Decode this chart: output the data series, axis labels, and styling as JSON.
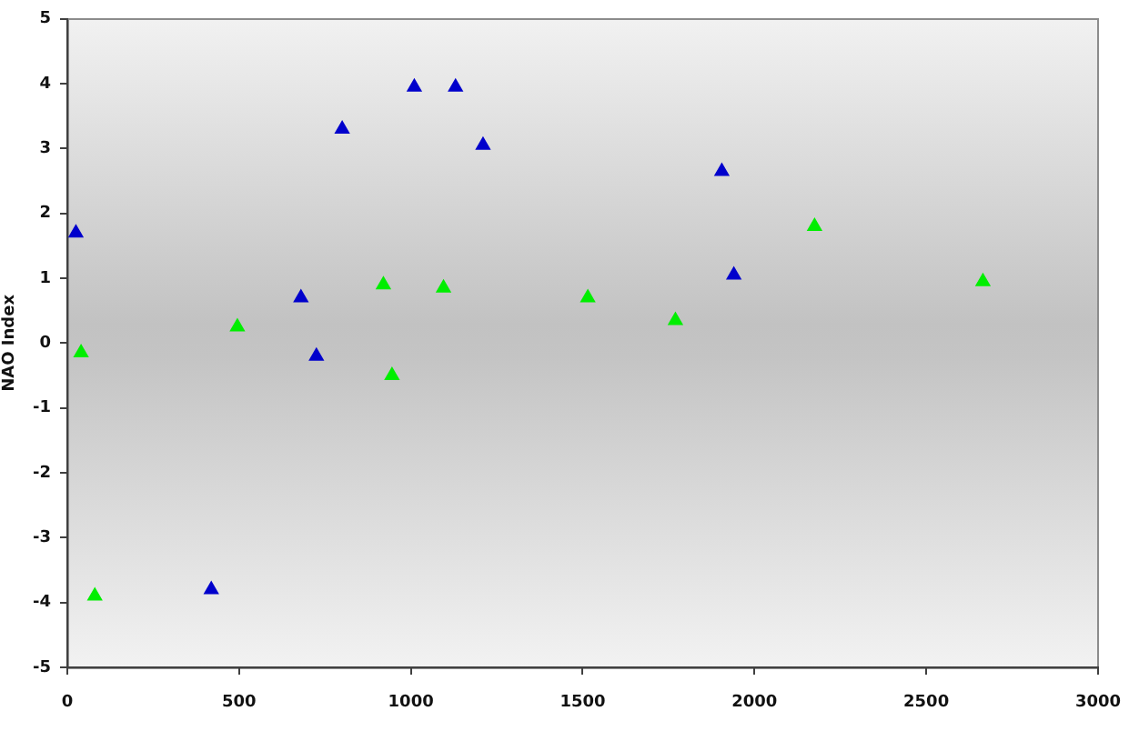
{
  "chart_data": {
    "type": "scatter",
    "ylabel": "NAO Index",
    "xlim": [
      0,
      3000
    ],
    "xticks": [
      0,
      500,
      1000,
      1500,
      2000,
      2500,
      3000
    ],
    "ylim": [
      -5,
      5
    ],
    "yticks": [
      -5,
      -4,
      -3,
      -2,
      -1,
      0,
      1,
      2,
      3,
      4,
      5
    ],
    "grid": false,
    "legend": false,
    "marker": "triangle",
    "series": [
      {
        "color": "#0000cc",
        "x": [
          25,
          419,
          680,
          725,
          800,
          1010,
          1130,
          1210,
          1905,
          1940
        ],
        "values": [
          1.7,
          -3.8,
          0.7,
          -0.2,
          3.3,
          3.95,
          3.95,
          3.05,
          2.65,
          1.05
        ]
      },
      {
        "color": "#00ee00",
        "x": [
          40,
          80,
          495,
          920,
          945,
          1095,
          1515,
          1770,
          2175,
          2665
        ],
        "values": [
          -0.15,
          -3.9,
          0.25,
          0.9,
          -0.5,
          0.85,
          0.7,
          0.35,
          1.8,
          0.95
        ]
      }
    ]
  }
}
